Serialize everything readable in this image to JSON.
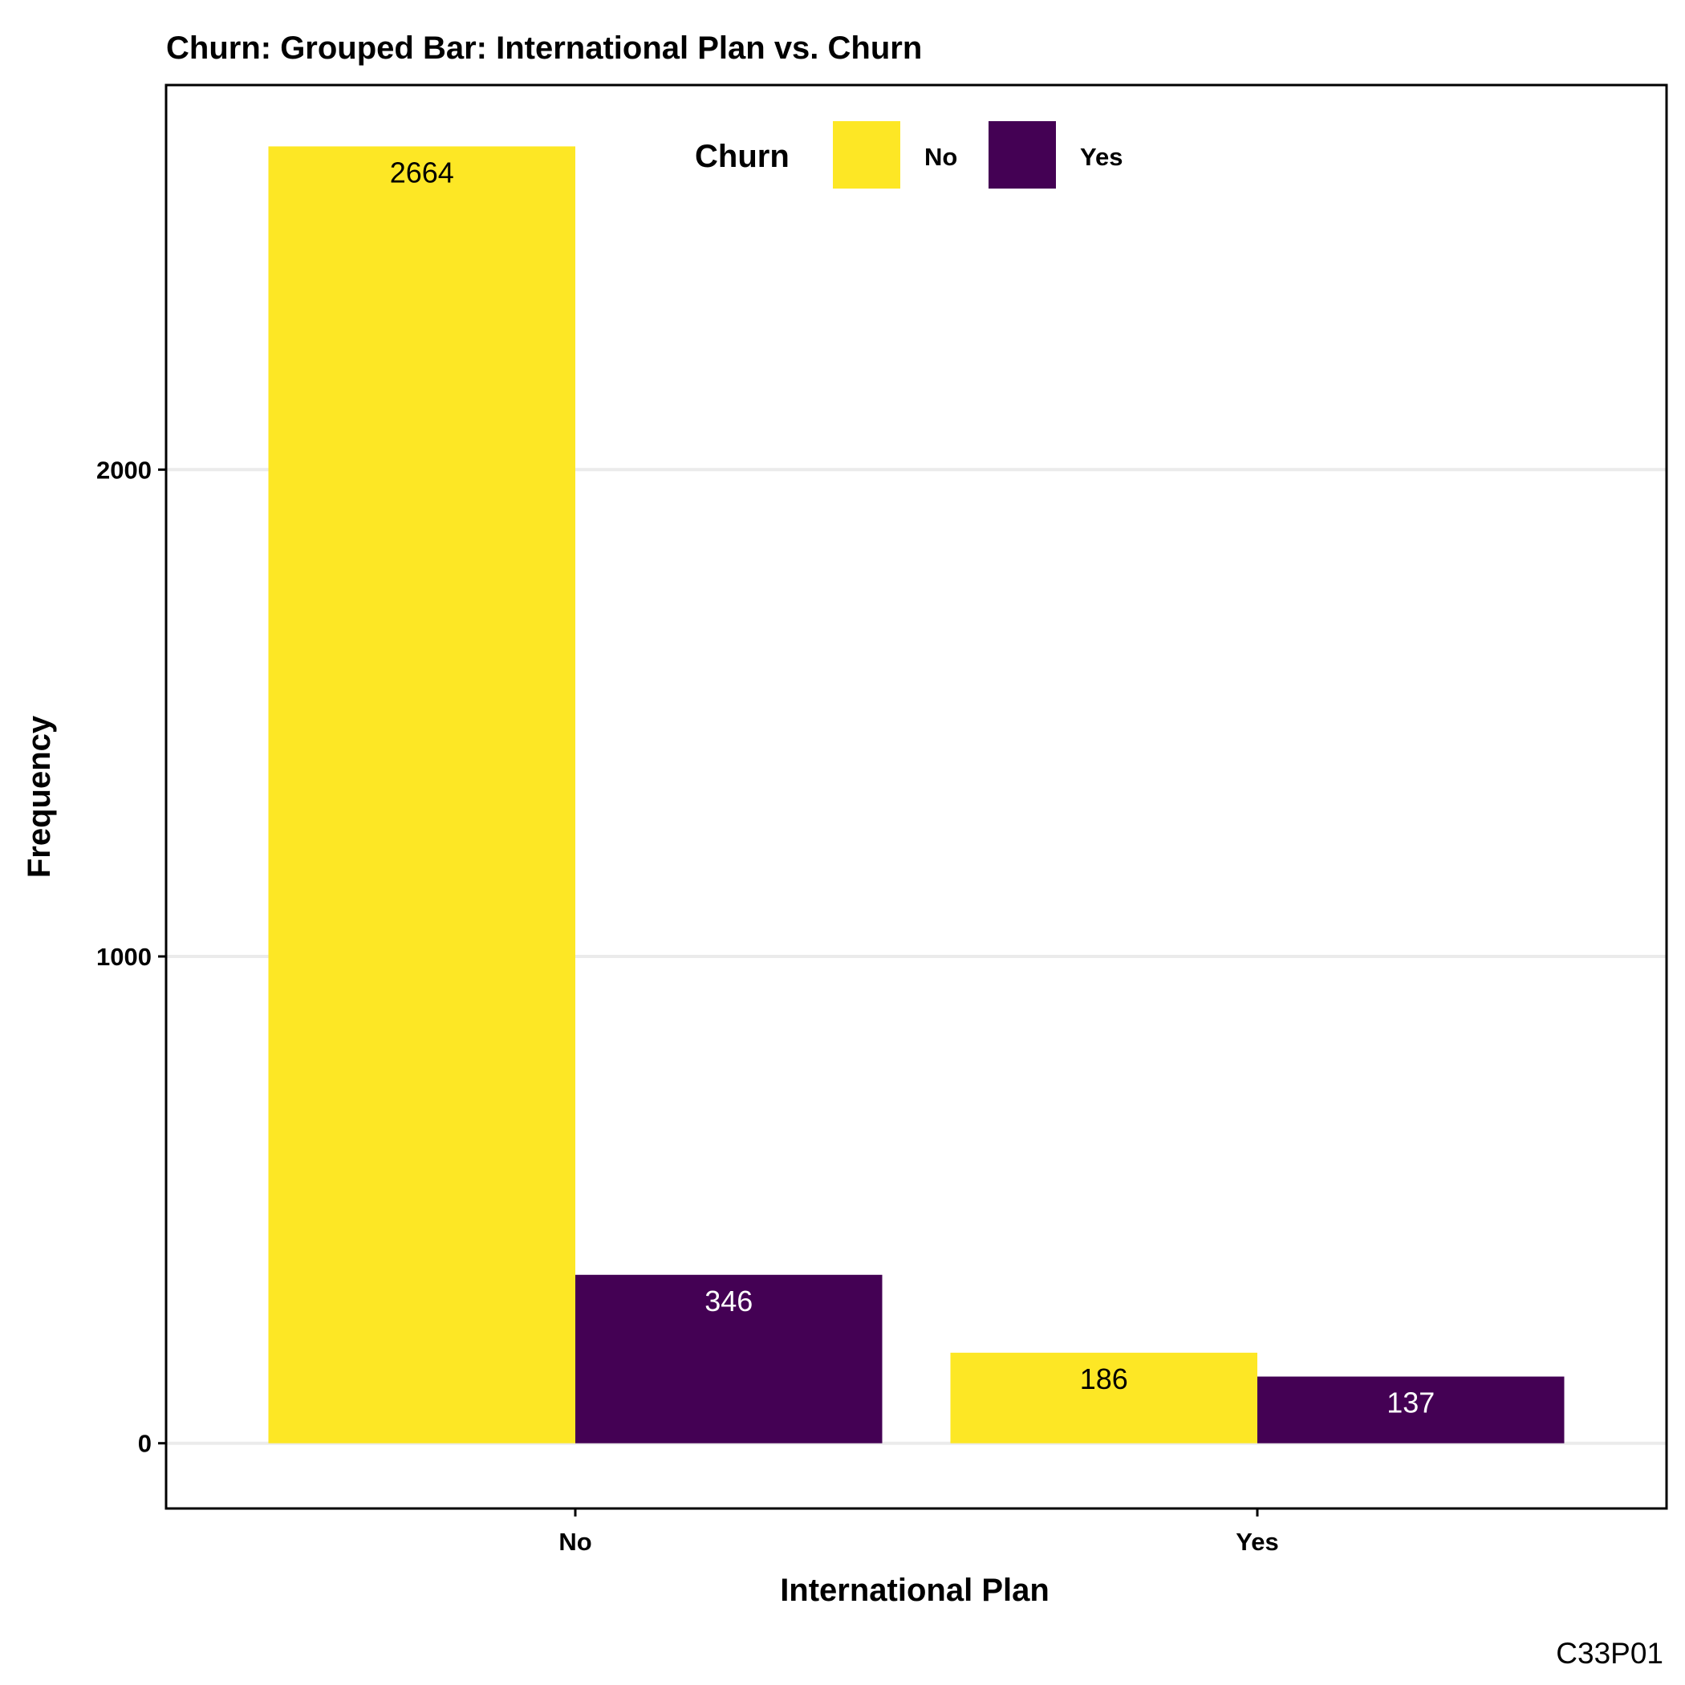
{
  "chart_data": {
    "type": "bar",
    "title": "Churn: Grouped Bar: International Plan vs. Churn",
    "xlabel": "International Plan",
    "ylabel": "Frequency",
    "categories": [
      "No",
      "Yes"
    ],
    "series": [
      {
        "name": "No",
        "values": [
          2664,
          186
        ],
        "color": "#FDE725"
      },
      {
        "name": "Yes",
        "values": [
          346,
          137
        ],
        "color": "#440154"
      }
    ],
    "ylim": [
      -134,
      2790
    ],
    "yticks": [
      0,
      1000,
      2000
    ],
    "legend": {
      "title": "Churn",
      "placement": "top-center inside plot"
    },
    "grid": "horizontal major",
    "data_label_colors": {
      "No": "#000000",
      "Yes": "#ffffff"
    },
    "caption": "C33P01"
  }
}
